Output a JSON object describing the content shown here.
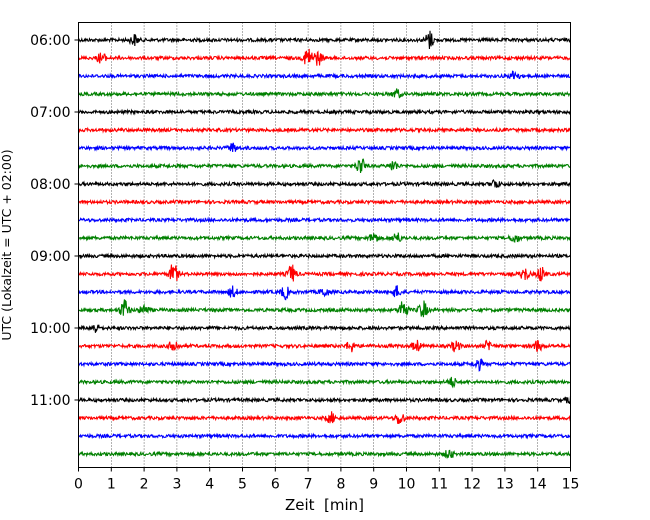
{
  "chart_data": {
    "type": "line",
    "title": "",
    "xlabel": "Zeit  [min]",
    "ylabel": "UTC (Lokalzeit = UTC + 02:00)",
    "xlim": [
      0,
      15
    ],
    "x_ticks": [
      0,
      1,
      2,
      3,
      4,
      5,
      6,
      7,
      8,
      9,
      10,
      11,
      12,
      13,
      14,
      15
    ],
    "y_tick_labels": [
      "06:00",
      "07:00",
      "08:00",
      "09:00",
      "10:00",
      "11:00"
    ],
    "grid": "vertical dotted at each minute",
    "trace_interval_min": 15,
    "color_cycle": [
      "#000000",
      "#ff0000",
      "#0000ff",
      "#008000"
    ],
    "traces": [
      {
        "start": "06:00",
        "color": "#000000",
        "events": [
          [
            1.7,
            0.6
          ],
          [
            10.7,
            1.0
          ]
        ]
      },
      {
        "start": "06:15",
        "color": "#ff0000",
        "events": [
          [
            0.7,
            0.6
          ],
          [
            7.0,
            1.2
          ],
          [
            7.3,
            0.8
          ]
        ]
      },
      {
        "start": "06:30",
        "color": "#0000ff",
        "events": [
          [
            13.3,
            0.6
          ]
        ]
      },
      {
        "start": "06:45",
        "color": "#008000",
        "events": [
          [
            9.7,
            0.5
          ]
        ]
      },
      {
        "start": "07:00",
        "color": "#000000",
        "events": []
      },
      {
        "start": "07:15",
        "color": "#ff0000",
        "events": []
      },
      {
        "start": "07:30",
        "color": "#0000ff",
        "events": [
          [
            4.7,
            0.5
          ]
        ]
      },
      {
        "start": "07:45",
        "color": "#008000",
        "events": [
          [
            8.6,
            1.0
          ],
          [
            9.6,
            0.6
          ]
        ]
      },
      {
        "start": "08:00",
        "color": "#000000",
        "events": [
          [
            12.7,
            0.5
          ]
        ]
      },
      {
        "start": "08:15",
        "color": "#ff0000",
        "events": []
      },
      {
        "start": "08:30",
        "color": "#0000ff",
        "events": []
      },
      {
        "start": "08:45",
        "color": "#008000",
        "events": [
          [
            9.0,
            0.6
          ],
          [
            9.7,
            0.6
          ],
          [
            13.3,
            0.5
          ]
        ]
      },
      {
        "start": "09:00",
        "color": "#000000",
        "events": []
      },
      {
        "start": "09:15",
        "color": "#ff0000",
        "events": [
          [
            2.9,
            1.2
          ],
          [
            6.5,
            1.0
          ],
          [
            13.6,
            0.7
          ],
          [
            14.1,
            0.8
          ]
        ]
      },
      {
        "start": "09:30",
        "color": "#0000ff",
        "events": [
          [
            4.7,
            0.6
          ],
          [
            6.3,
            0.7
          ],
          [
            7.5,
            0.5
          ],
          [
            9.7,
            0.6
          ]
        ]
      },
      {
        "start": "09:45",
        "color": "#008000",
        "events": [
          [
            1.4,
            1.2
          ],
          [
            2.0,
            0.6
          ],
          [
            9.9,
            1.2
          ],
          [
            10.5,
            1.0
          ]
        ]
      },
      {
        "start": "10:00",
        "color": "#000000",
        "events": [
          [
            0.5,
            0.5
          ]
        ]
      },
      {
        "start": "10:15",
        "color": "#ff0000",
        "events": [
          [
            2.9,
            0.8
          ],
          [
            8.3,
            0.6
          ],
          [
            10.3,
            0.6
          ],
          [
            11.5,
            0.6
          ],
          [
            12.5,
            0.6
          ],
          [
            14.0,
            0.6
          ]
        ]
      },
      {
        "start": "10:30",
        "color": "#0000ff",
        "events": [
          [
            12.2,
            0.6
          ]
        ]
      },
      {
        "start": "10:45",
        "color": "#008000",
        "events": [
          [
            11.4,
            0.5
          ]
        ]
      },
      {
        "start": "11:00",
        "color": "#000000",
        "events": [
          [
            15.0,
            0.5
          ]
        ]
      },
      {
        "start": "11:15",
        "color": "#ff0000",
        "events": [
          [
            7.7,
            0.6
          ],
          [
            9.8,
            0.8
          ]
        ]
      },
      {
        "start": "11:30",
        "color": "#0000ff",
        "events": []
      },
      {
        "start": "11:45",
        "color": "#008000",
        "events": [
          [
            11.3,
            0.5
          ]
        ]
      }
    ]
  }
}
